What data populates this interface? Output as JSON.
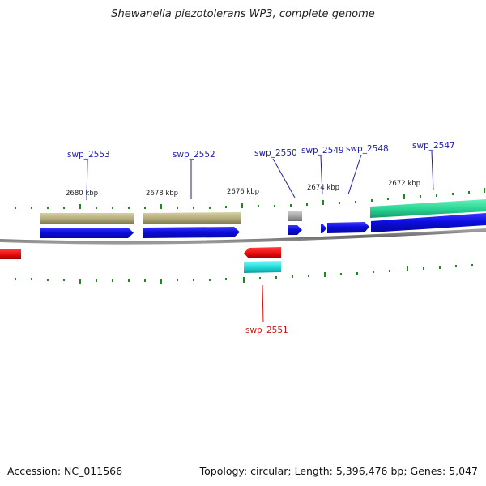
{
  "title": "Shewanella piezotolerans WP3, complete genome",
  "footer": {
    "accession": "Accession: NC_011566",
    "summary": "Topology: circular; Length: 5,396,476 bp; Genes: 5,047"
  },
  "colors": {
    "forward_gene": "#1010dd",
    "reverse_gene": "#ee1111",
    "forward_label": "#1a1ab0",
    "reverse_label": "#cc1111",
    "cds_tan": "#b8b080",
    "cds_green": "#33dd99",
    "cds_gray": "#aaaaaa",
    "cds_cyan": "#22dddd",
    "ticks": "#228822",
    "backbone": "#777777"
  },
  "scale_labels": [
    "2680 kbp",
    "2678 kbp",
    "2676 kbp",
    "2674 kbp",
    "2672 kbp"
  ],
  "forward_genes": [
    {
      "id": "swp_2553"
    },
    {
      "id": "swp_2552"
    },
    {
      "id": "swp_2550"
    },
    {
      "id": "swp_2549"
    },
    {
      "id": "swp_2548"
    },
    {
      "id": "swp_2547"
    }
  ],
  "reverse_genes": [
    {
      "id": "swp_2551"
    }
  ]
}
